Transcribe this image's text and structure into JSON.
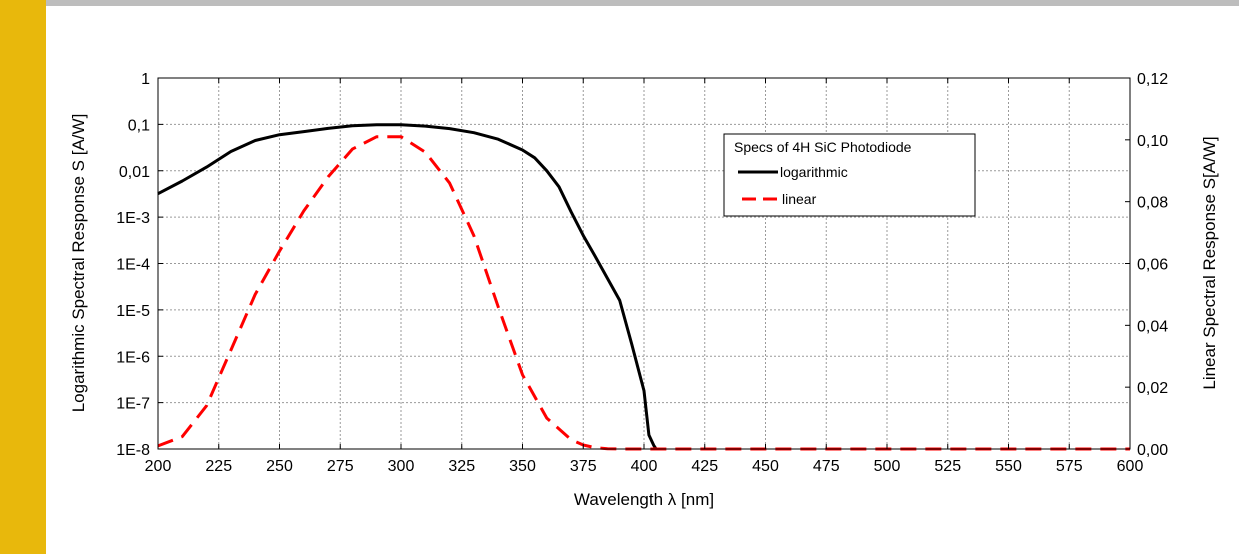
{
  "colors": {
    "side_bar": "#e8b80c",
    "top_rule": "#bdbdbd",
    "grid": "#9a9a9a",
    "logarithmic": "#000000",
    "linear": "#ff0000"
  },
  "chart_data": {
    "type": "line",
    "xlabel": "Wavelength λ [nm]",
    "ylabel_left": "Logarithmic Spectral Response S [A/W]",
    "ylabel_right": "Linear Spectral Response S[A/W]",
    "xlim": [
      200,
      600
    ],
    "x_ticks": [
      "200",
      "225",
      "250",
      "275",
      "300",
      "325",
      "350",
      "375",
      "400",
      "425",
      "450",
      "475",
      "500",
      "525",
      "550",
      "575",
      "600"
    ],
    "y_left_scale": "log",
    "y_left_lim": [
      1e-08,
      1
    ],
    "y_left_ticks": [
      "1E-8",
      "1E-7",
      "1E-6",
      "1E-5",
      "1E-4",
      "1E-3",
      "0,01",
      "0,1",
      "1"
    ],
    "y_right_lim": [
      0,
      0.12
    ],
    "y_right_ticks": [
      "0,00",
      "0,02",
      "0,04",
      "0,06",
      "0,08",
      "0,10",
      "0,12"
    ],
    "grid": true,
    "legend": {
      "placement": "top-right",
      "title": "Specs of 4H SiC Photodiode",
      "entries": [
        "logarithmic",
        "linear"
      ]
    },
    "series": [
      {
        "name": "logarithmic",
        "axis": "left",
        "style": "solid",
        "x": [
          200,
          210,
          220,
          230,
          240,
          250,
          260,
          270,
          280,
          290,
          300,
          310,
          320,
          330,
          340,
          350,
          355,
          360,
          365,
          370,
          375,
          380,
          390,
          395,
          400,
          402,
          404,
          405
        ],
        "y": [
          0.0032,
          0.006,
          0.012,
          0.026,
          0.045,
          0.06,
          0.07,
          0.082,
          0.093,
          0.098,
          0.098,
          0.092,
          0.081,
          0.066,
          0.048,
          0.028,
          0.019,
          0.01,
          0.0045,
          0.0013,
          0.0004,
          0.00014,
          1.6e-05,
          1.8e-06,
          1.8e-07,
          2e-08,
          1.2e-08,
          1e-08
        ]
      },
      {
        "name": "linear",
        "axis": "right",
        "style": "dashed",
        "x": [
          200,
          210,
          220,
          230,
          240,
          250,
          260,
          270,
          280,
          290,
          300,
          310,
          320,
          330,
          340,
          350,
          360,
          370,
          375,
          380,
          385,
          390,
          400,
          450,
          500,
          550,
          600
        ],
        "y": [
          0.001,
          0.004,
          0.014,
          0.032,
          0.05,
          0.064,
          0.077,
          0.088,
          0.097,
          0.101,
          0.101,
          0.096,
          0.086,
          0.069,
          0.046,
          0.024,
          0.01,
          0.003,
          0.0013,
          0.0004,
          0.0001,
          0,
          0,
          0,
          0,
          0,
          0
        ]
      }
    ]
  }
}
